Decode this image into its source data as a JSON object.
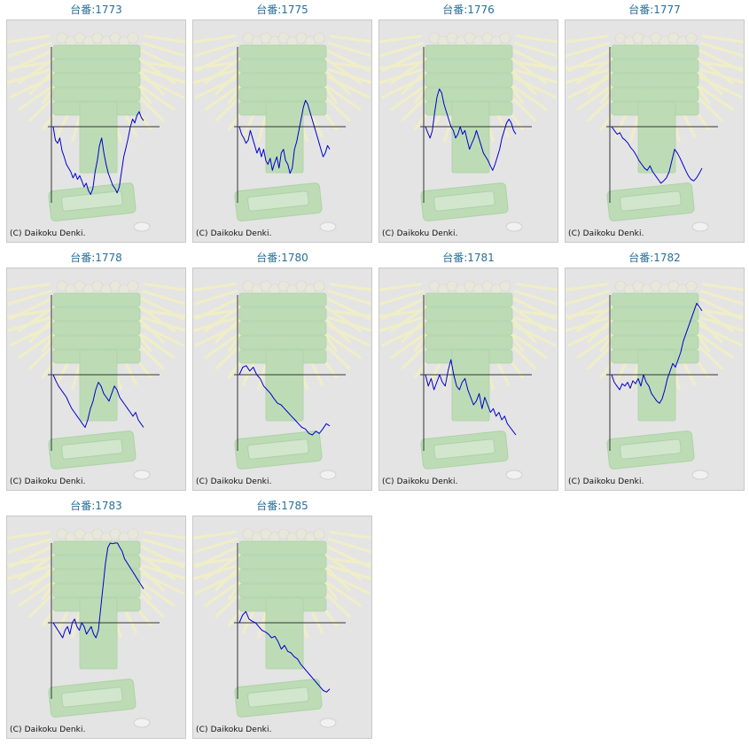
{
  "copyright": "(C) Daikoku Denki.",
  "colors": {
    "series": "#0000cc",
    "axis": "#333333",
    "title": "#2a6f96",
    "panel_bg": "#e4e4e4",
    "watermark_green": "#b9dcb2",
    "watermark_rays": "#f2f0c4"
  },
  "watermark_icon": "slot-machine-medal-watermark",
  "chart_data": [
    {
      "type": "line",
      "title": "台番:1773",
      "xlabel": "",
      "ylabel": "",
      "y": [
        0,
        18,
        22,
        15,
        32,
        40,
        50,
        55,
        60,
        68,
        62,
        70,
        65,
        72,
        80,
        75,
        85,
        90,
        82,
        60,
        45,
        25,
        15,
        35,
        50,
        62,
        70,
        78,
        82,
        88,
        80,
        60,
        40,
        28,
        15,
        0,
        -10,
        -5,
        -15,
        -20,
        -12,
        -8
      ]
    },
    {
      "type": "line",
      "title": "台番:1775",
      "xlabel": "",
      "ylabel": "",
      "y": [
        0,
        10,
        15,
        22,
        18,
        5,
        15,
        25,
        35,
        28,
        40,
        30,
        45,
        50,
        42,
        58,
        48,
        40,
        55,
        35,
        30,
        45,
        50,
        62,
        55,
        30,
        20,
        5,
        -10,
        -25,
        -35,
        -30,
        -20,
        -10,
        0,
        10,
        20,
        30,
        40,
        35,
        25,
        30
      ]
    },
    {
      "type": "line",
      "title": "台番:1776",
      "xlabel": "",
      "ylabel": "",
      "y": [
        0,
        8,
        15,
        5,
        -20,
        -40,
        -50,
        -45,
        -30,
        -20,
        -10,
        0,
        5,
        15,
        10,
        0,
        10,
        5,
        18,
        30,
        22,
        15,
        5,
        15,
        25,
        35,
        40,
        45,
        52,
        58,
        50,
        40,
        30,
        15,
        5,
        -5,
        -10,
        -5,
        5,
        10
      ]
    },
    {
      "type": "line",
      "title": "台番:1777",
      "xlabel": "",
      "ylabel": "",
      "y": [
        0,
        5,
        10,
        8,
        15,
        18,
        22,
        28,
        32,
        38,
        45,
        50,
        55,
        58,
        52,
        60,
        65,
        70,
        75,
        72,
        68,
        60,
        45,
        30,
        35,
        42,
        50,
        58,
        65,
        70,
        72,
        68,
        62,
        55
      ]
    },
    {
      "type": "line",
      "title": "台番:1778",
      "xlabel": "",
      "ylabel": "",
      "y": [
        0,
        8,
        15,
        20,
        25,
        30,
        38,
        45,
        50,
        55,
        60,
        65,
        70,
        60,
        45,
        35,
        20,
        10,
        15,
        25,
        30,
        35,
        25,
        15,
        20,
        30,
        35,
        40,
        45,
        50,
        55,
        50,
        60,
        65,
        70
      ]
    },
    {
      "type": "line",
      "title": "台番:1780",
      "xlabel": "",
      "ylabel": "",
      "y": [
        0,
        -10,
        -12,
        -5,
        -10,
        0,
        5,
        15,
        20,
        25,
        32,
        38,
        40,
        45,
        50,
        55,
        60,
        65,
        70,
        72,
        78,
        80,
        75,
        78,
        72,
        65,
        68
      ]
    },
    {
      "type": "line",
      "title": "台番:1781",
      "xlabel": "",
      "ylabel": "",
      "y": [
        0,
        15,
        5,
        20,
        10,
        0,
        10,
        15,
        -5,
        -20,
        0,
        15,
        20,
        10,
        5,
        20,
        30,
        40,
        35,
        25,
        45,
        30,
        40,
        50,
        45,
        55,
        50,
        60,
        55,
        65,
        70,
        75,
        80
      ]
    },
    {
      "type": "line",
      "title": "台番:1782",
      "xlabel": "",
      "ylabel": "",
      "y": [
        0,
        10,
        15,
        20,
        12,
        15,
        10,
        18,
        8,
        12,
        5,
        15,
        0,
        10,
        15,
        25,
        30,
        35,
        38,
        32,
        20,
        5,
        -5,
        -15,
        -10,
        -20,
        -30,
        -45,
        -55,
        -65,
        -75,
        -85,
        -95,
        -90,
        -85
      ]
    },
    {
      "type": "line",
      "title": "台番:1783",
      "xlabel": "",
      "ylabel": "",
      "y": [
        0,
        5,
        10,
        15,
        20,
        10,
        5,
        15,
        0,
        -5,
        5,
        10,
        0,
        5,
        15,
        10,
        5,
        15,
        20,
        10,
        -20,
        -50,
        -80,
        -100,
        -110,
        -105,
        -115,
        -110,
        -100,
        -95,
        -85,
        -80,
        -75,
        -70,
        -65,
        -60,
        -55,
        -50,
        -45
      ]
    },
    {
      "type": "line",
      "title": "台番:1785",
      "xlabel": "",
      "ylabel": "",
      "y": [
        0,
        -10,
        -15,
        -5,
        -2,
        0,
        5,
        10,
        12,
        15,
        20,
        18,
        25,
        35,
        30,
        38,
        40,
        45,
        48,
        55,
        60,
        65,
        70,
        75,
        80,
        85,
        90,
        92,
        88
      ]
    }
  ]
}
